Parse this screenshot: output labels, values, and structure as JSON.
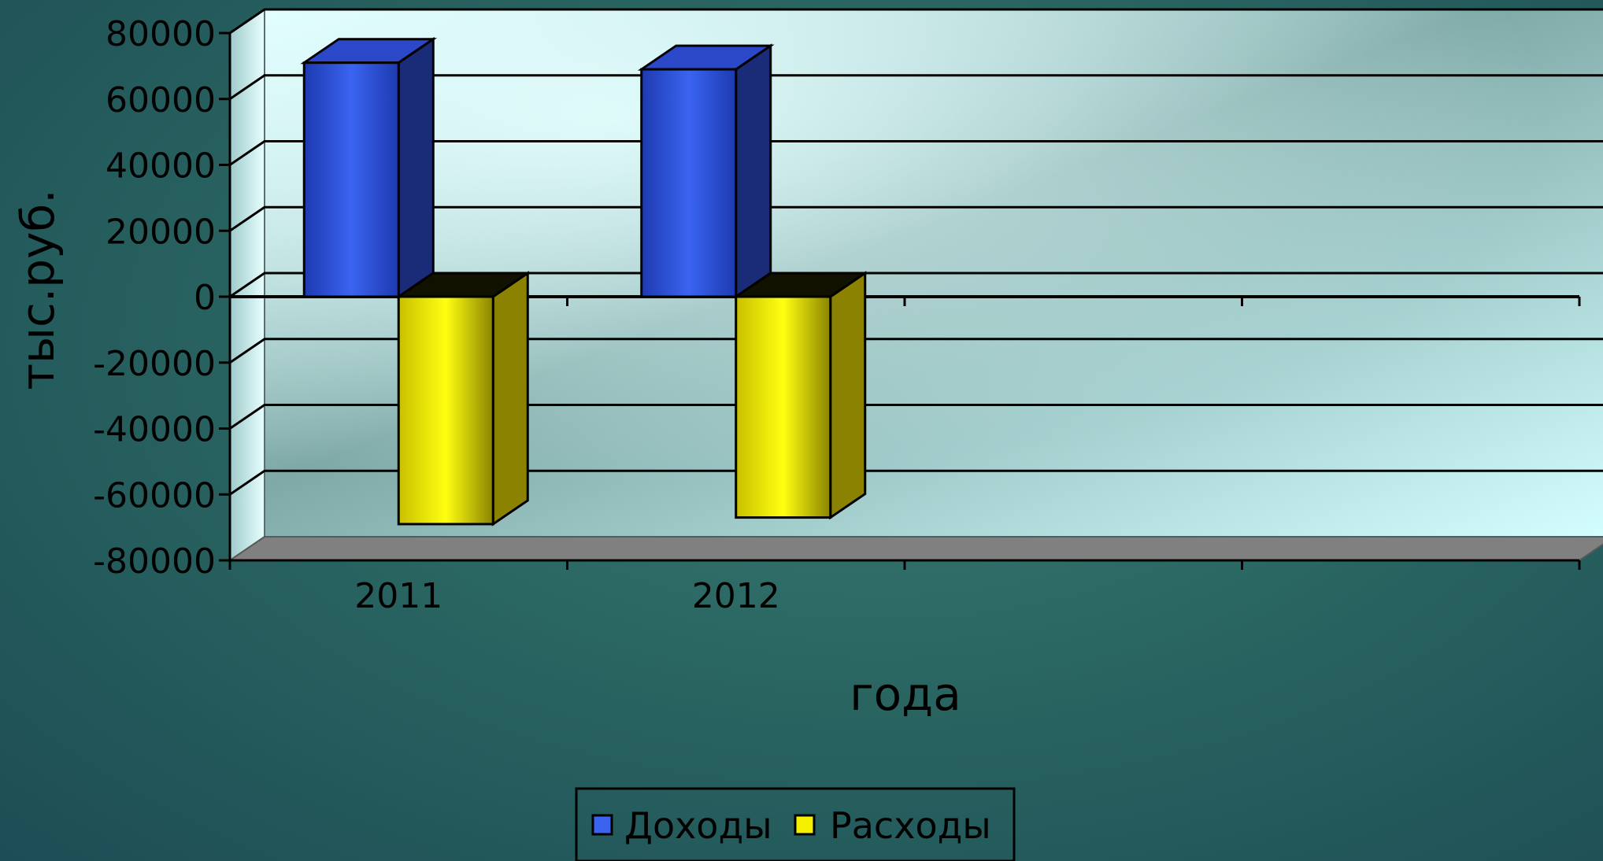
{
  "chart_data": {
    "type": "bar",
    "style": "3d-clustered-column",
    "categories": [
      "2011",
      "2012"
    ],
    "x_slots": 4,
    "series": [
      {
        "name": "Доходы",
        "values": [
          71000,
          69000
        ],
        "color": "#3a64f0"
      },
      {
        "name": "Расходы",
        "values": [
          -69000,
          -67000
        ],
        "color": "#f5f000"
      }
    ],
    "xlabel": "года",
    "ylabel": "тыс.руб.",
    "ylim": [
      -80000,
      80000
    ],
    "yticks": [
      80000,
      60000,
      40000,
      20000,
      0,
      -20000,
      -40000,
      -60000,
      -80000
    ],
    "grid": true,
    "legend_position": "bottom",
    "colors": {
      "wall": "#c8ffff",
      "wall_shade": "#6e9c9a",
      "floor": "#808080",
      "blue_front": "#3a64f0",
      "blue_side": "#1a2c78",
      "yellow_front": "#f5f000",
      "yellow_side": "#8a8200"
    }
  }
}
